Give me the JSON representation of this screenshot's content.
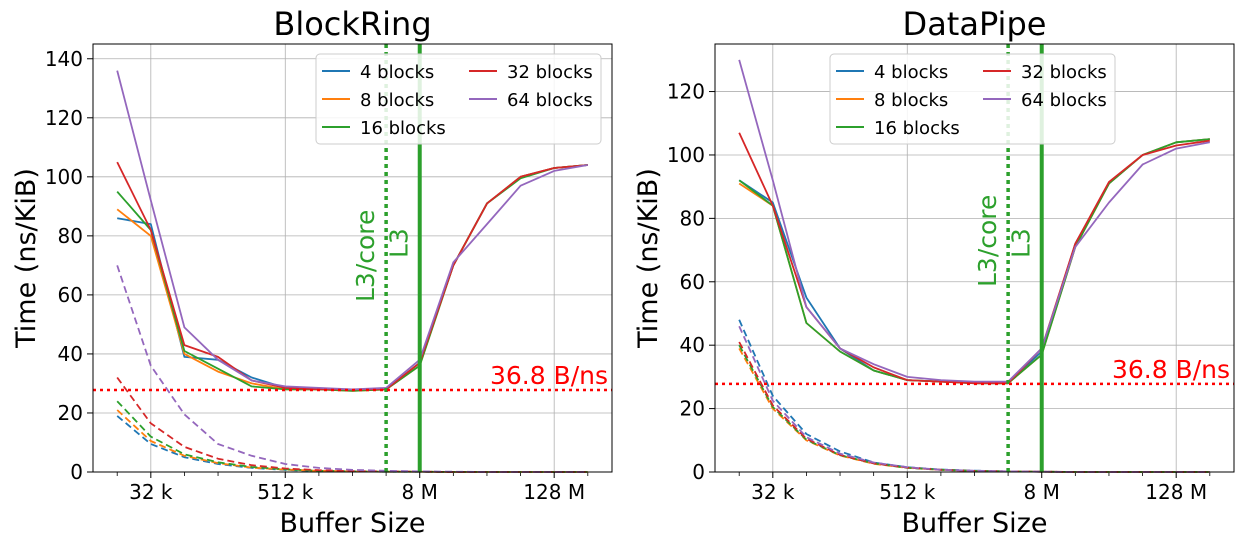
{
  "chart_data": [
    {
      "type": "line",
      "title": "BlockRing",
      "xlabel": "Buffer Size",
      "ylabel": "Time (ns/KiB)",
      "x_scale": "log2",
      "x": [
        "16 k",
        "32 k",
        "64 k",
        "128 k",
        "256 k",
        "512 k",
        "1 M",
        "2 M",
        "4 M",
        "8 M",
        "16 M",
        "32 M",
        "64 M",
        "128 M",
        "256 M"
      ],
      "x_ticks": [
        "32 k",
        "512 k",
        "8 M",
        "128 M"
      ],
      "ylim": [
        0,
        145
      ],
      "y_ticks": [
        "0",
        "20",
        "40",
        "60",
        "80",
        "100",
        "120",
        "140"
      ],
      "grid": true,
      "legend_placement": "top-right",
      "legend_columns": 2,
      "series": [
        {
          "name": "4 blocks",
          "color": "#1f77b4",
          "style": "solid",
          "values": [
            86,
            84,
            39,
            38,
            32,
            28.5,
            28,
            28,
            28,
            37,
            70,
            91,
            100,
            103,
            104
          ]
        },
        {
          "name": "8 blocks",
          "color": "#ff7f0e",
          "style": "solid",
          "values": [
            89,
            80,
            40,
            34,
            30,
            28,
            28,
            27.5,
            28,
            36,
            70,
            91,
            100,
            103,
            104
          ]
        },
        {
          "name": "16 blocks",
          "color": "#2ca02c",
          "style": "solid",
          "values": [
            95,
            82,
            41,
            35,
            29,
            28,
            28,
            27.5,
            28,
            36,
            70,
            91,
            99.5,
            103,
            104
          ]
        },
        {
          "name": "32 blocks",
          "color": "#d62728",
          "style": "solid",
          "values": [
            105,
            82,
            43,
            39,
            31,
            28.5,
            28,
            28,
            28,
            37,
            70,
            91,
            100,
            103,
            104
          ]
        },
        {
          "name": "64 blocks",
          "color": "#9467bd",
          "style": "solid",
          "values": [
            136,
            92,
            49,
            38,
            31,
            29,
            28.5,
            28,
            28.5,
            38,
            71,
            84,
            97,
            102,
            104
          ]
        },
        {
          "color": "#1f77b4",
          "style": "dashed",
          "values": [
            19,
            9.5,
            5,
            2.7,
            1.4,
            0.7,
            0.3,
            0.2,
            0.1,
            0.1,
            0,
            0,
            0,
            0,
            0
          ]
        },
        {
          "color": "#ff7f0e",
          "style": "dashed",
          "values": [
            21,
            10.5,
            5.5,
            3,
            1.5,
            0.8,
            0.4,
            0.2,
            0.1,
            0.1,
            0,
            0,
            0,
            0,
            0
          ]
        },
        {
          "color": "#2ca02c",
          "style": "dashed",
          "values": [
            24,
            12,
            6,
            3.3,
            1.7,
            0.9,
            0.4,
            0.2,
            0.1,
            0.1,
            0,
            0,
            0,
            0,
            0
          ]
        },
        {
          "color": "#d62728",
          "style": "dashed",
          "values": [
            32,
            16.5,
            8.5,
            4.5,
            2.3,
            1.2,
            0.6,
            0.3,
            0.2,
            0.1,
            0,
            0,
            0,
            0,
            0
          ]
        },
        {
          "color": "#9467bd",
          "style": "dashed",
          "values": [
            70,
            36,
            19.5,
            9.5,
            5.5,
            2.7,
            1.4,
            0.7,
            0.4,
            0.2,
            0.1,
            0,
            0,
            0,
            0
          ]
        }
      ],
      "annotations": [
        {
          "label": "L3/core",
          "x": "4 M",
          "line": "dotted",
          "color": "#2ca02c"
        },
        {
          "label": "L3",
          "x": "8 M",
          "line": "solid",
          "color": "#2ca02c"
        },
        {
          "label": "36.8 B/ns",
          "y": 27.8,
          "line": "dotted",
          "color": "#ff0000"
        }
      ]
    },
    {
      "type": "line",
      "title": "DataPipe",
      "xlabel": "Buffer Size",
      "ylabel": "Time (ns/KiB)",
      "x_scale": "log2",
      "x": [
        "16 k",
        "32 k",
        "64 k",
        "128 k",
        "256 k",
        "512 k",
        "1 M",
        "2 M",
        "4 M",
        "8 M",
        "16 M",
        "32 M",
        "64 M",
        "128 M",
        "256 M"
      ],
      "x_ticks": [
        "32 k",
        "512 k",
        "8 M",
        "128 M"
      ],
      "ylim": [
        0,
        135
      ],
      "y_ticks": [
        "0",
        "20",
        "40",
        "60",
        "80",
        "100",
        "120"
      ],
      "grid": true,
      "legend_placement": "top-center",
      "legend_columns": 2,
      "series": [
        {
          "name": "4 blocks",
          "color": "#1f77b4",
          "style": "solid",
          "values": [
            92,
            85,
            55,
            39,
            32,
            29,
            28.5,
            28,
            28,
            38,
            72,
            91,
            100,
            104,
            105
          ]
        },
        {
          "name": "8 blocks",
          "color": "#ff7f0e",
          "style": "solid",
          "values": [
            91,
            84,
            47,
            38,
            32,
            29,
            28.5,
            28,
            28,
            37,
            71,
            91,
            100,
            104,
            105
          ]
        },
        {
          "name": "16 blocks",
          "color": "#2ca02c",
          "style": "solid",
          "values": [
            92,
            84,
            47,
            38,
            32,
            29,
            28.5,
            28,
            28,
            37,
            71,
            91,
            100,
            104,
            105
          ]
        },
        {
          "name": "32 blocks",
          "color": "#d62728",
          "style": "solid",
          "values": [
            107,
            84,
            52,
            39,
            33,
            29,
            28.5,
            28,
            28,
            39,
            72,
            91.5,
            100,
            103,
            104.5
          ]
        },
        {
          "name": "64 blocks",
          "color": "#9467bd",
          "style": "solid",
          "values": [
            130,
            92,
            52,
            39,
            34,
            30,
            29,
            28.5,
            28.5,
            39,
            71,
            85,
            97,
            102,
            104
          ]
        },
        {
          "color": "#1f77b4",
          "style": "dashed",
          "values": [
            48,
            24,
            12,
            6.5,
            3,
            1.5,
            0.8,
            0.4,
            0.2,
            0.1,
            0,
            0,
            0,
            0,
            0
          ]
        },
        {
          "color": "#ff7f0e",
          "style": "dashed",
          "values": [
            39,
            20,
            10,
            5.2,
            2.6,
            1.3,
            0.7,
            0.3,
            0.2,
            0.1,
            0,
            0,
            0,
            0,
            0
          ]
        },
        {
          "color": "#2ca02c",
          "style": "dashed",
          "values": [
            40,
            20.5,
            10.2,
            5.3,
            2.7,
            1.3,
            0.7,
            0.3,
            0.2,
            0.1,
            0,
            0,
            0,
            0,
            0
          ]
        },
        {
          "color": "#d62728",
          "style": "dashed",
          "values": [
            41,
            21,
            10.5,
            5.4,
            2.7,
            1.4,
            0.7,
            0.3,
            0.2,
            0.1,
            0,
            0,
            0,
            0,
            0
          ]
        },
        {
          "color": "#9467bd",
          "style": "dashed",
          "values": [
            46,
            22.5,
            11,
            5.8,
            3,
            1.5,
            0.7,
            0.4,
            0.2,
            0.1,
            0,
            0,
            0,
            0,
            0
          ]
        }
      ],
      "annotations": [
        {
          "label": "L3/core",
          "x": "4 M",
          "line": "dotted",
          "color": "#2ca02c"
        },
        {
          "label": "L3",
          "x": "8 M",
          "line": "solid",
          "color": "#2ca02c"
        },
        {
          "label": "36.8 B/ns",
          "y": 27.8,
          "line": "dotted",
          "color": "#ff0000"
        }
      ]
    }
  ]
}
